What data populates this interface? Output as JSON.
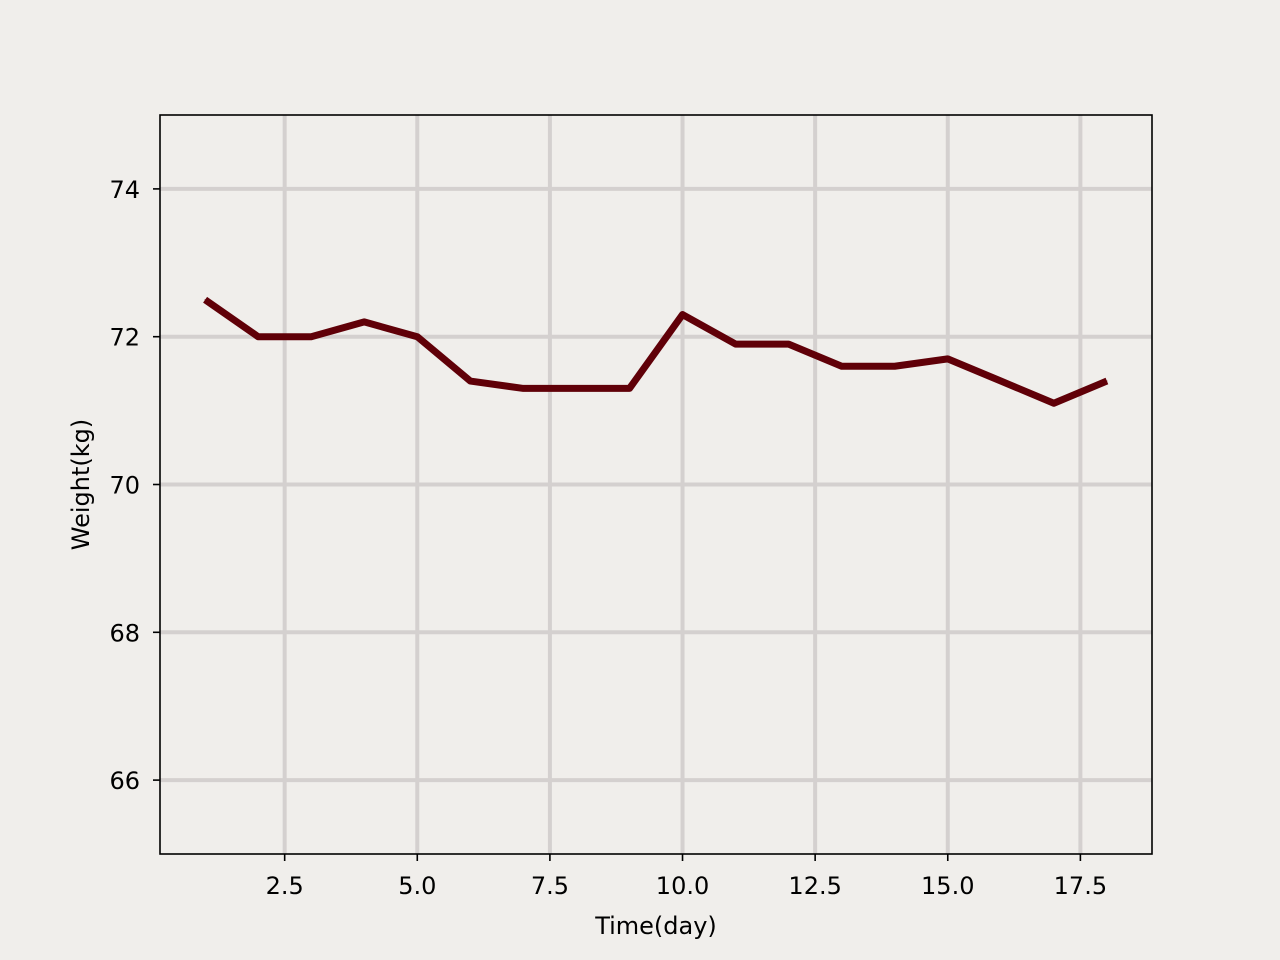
{
  "chart_data": {
    "type": "line",
    "title": "",
    "xlabel": "Time(day)",
    "ylabel": "Weight(kg)",
    "xlim": [
      0.15,
      18.85
    ],
    "ylim": [
      65,
      75
    ],
    "xticks": [
      2.5,
      5.0,
      7.5,
      10.0,
      12.5,
      15.0,
      17.5
    ],
    "xtick_labels": [
      "2.5",
      "5.0",
      "7.5",
      "10.0",
      "12.5",
      "15.0",
      "17.5"
    ],
    "yticks": [
      66,
      68,
      70,
      72,
      74
    ],
    "ytick_labels": [
      "66",
      "68",
      "70",
      "72",
      "74"
    ],
    "grid": true,
    "legend": "none",
    "series": [
      {
        "x": [
          1,
          2,
          3,
          4,
          5,
          6,
          7,
          8,
          9,
          10,
          11,
          12,
          13,
          14,
          15,
          16,
          17,
          18
        ],
        "values": [
          72.5,
          72.0,
          72.0,
          72.2,
          72.0,
          71.4,
          71.3,
          71.3,
          71.3,
          72.3,
          71.9,
          71.9,
          71.6,
          71.6,
          71.7,
          71.4,
          71.1,
          71.4
        ]
      }
    ],
    "colors": {
      "line": "#600008",
      "grid": "#d4d0cf",
      "background": "#f0eeeb",
      "axes": "#000000"
    }
  }
}
